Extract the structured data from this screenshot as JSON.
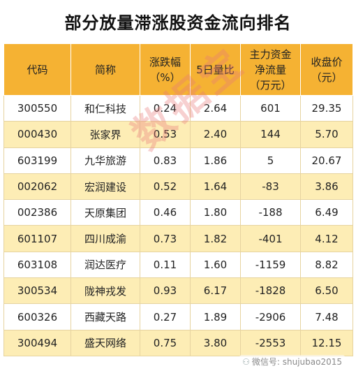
{
  "title": "部分放量滞涨股资金流向排名",
  "columns": [
    "代码",
    "简称",
    "涨跌幅\n（%）",
    "5日量比",
    "主力资金\n净流量\n（万元）",
    "收盘价\n（元）"
  ],
  "rows": [
    [
      "300550",
      "和仁科技",
      "0.24",
      "2.64",
      "601",
      "29.35"
    ],
    [
      "000430",
      "张家界",
      "0.53",
      "2.40",
      "144",
      "5.70"
    ],
    [
      "603199",
      "九华旅游",
      "0.83",
      "1.86",
      "5",
      "20.67"
    ],
    [
      "002062",
      "宏润建设",
      "0.52",
      "1.64",
      "-83",
      "3.86"
    ],
    [
      "002386",
      "天原集团",
      "0.46",
      "1.80",
      "-188",
      "6.49"
    ],
    [
      "601107",
      "四川成渝",
      "0.73",
      "1.82",
      "-401",
      "4.12"
    ],
    [
      "603108",
      "润达医疗",
      "0.11",
      "1.60",
      "-1159",
      "8.82"
    ],
    [
      "300534",
      "陇神戎发",
      "0.93",
      "6.17",
      "-1828",
      "6.50"
    ],
    [
      "600326",
      "西藏天路",
      "0.27",
      "1.89",
      "-2906",
      "7.48"
    ],
    [
      "300494",
      "盛天网络",
      "0.75",
      "3.80",
      "-2553",
      "12.15"
    ]
  ],
  "watermark": "数据宝",
  "source": "微信号: shujubao2015",
  "colors": {
    "header_bg": "#f5b233",
    "row_alt_bg": "#fdedb5",
    "row_bg": "#ffffff"
  }
}
